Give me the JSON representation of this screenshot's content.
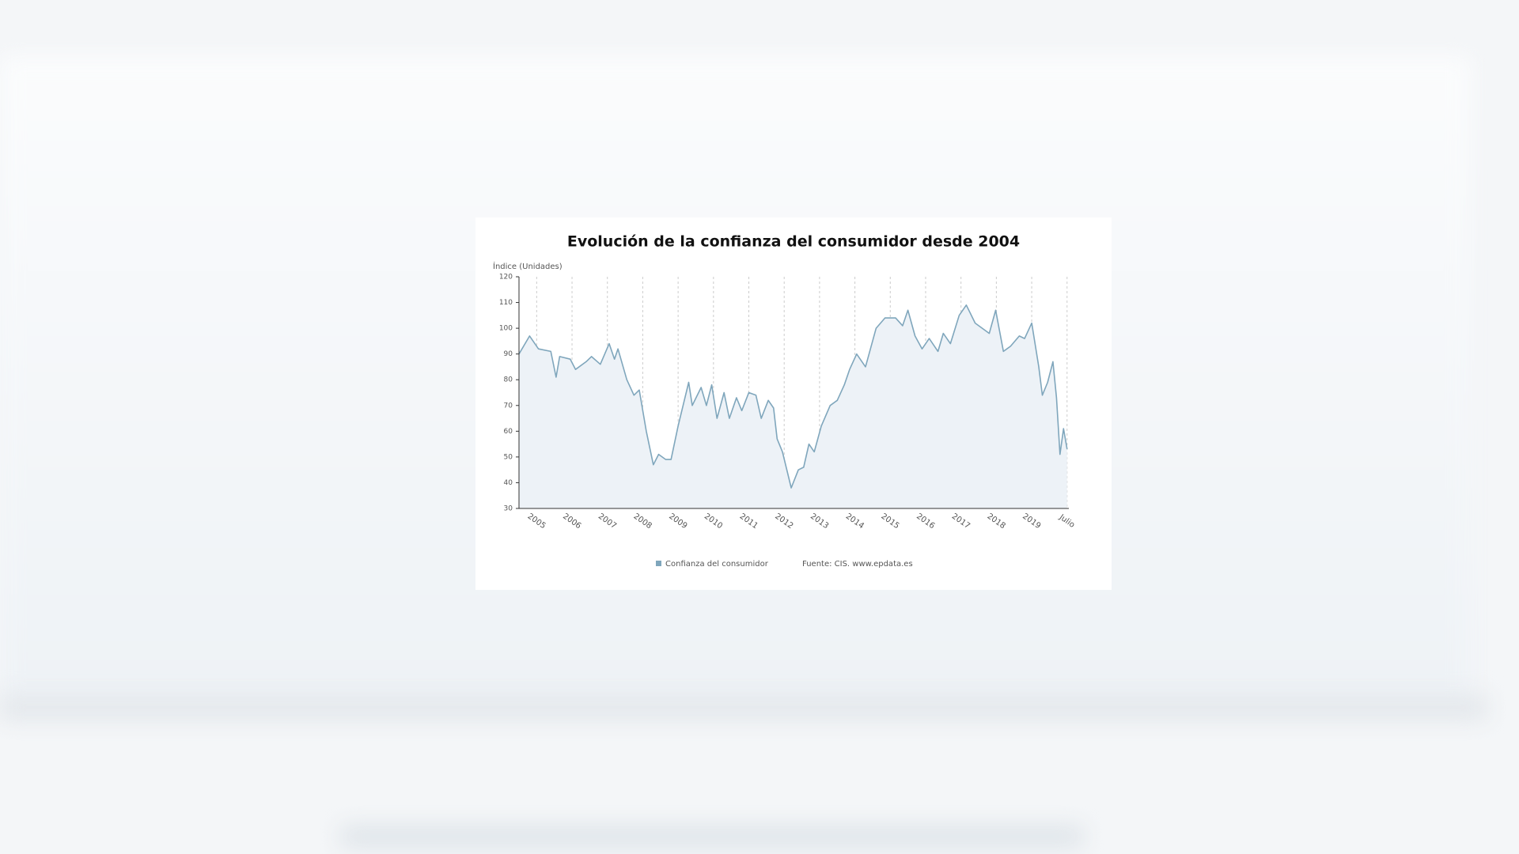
{
  "chart_data": {
    "type": "line",
    "title": "Evolución de la confianza del consumidor desde 2004",
    "y_label": "Índice (Unidades)",
    "source": "Fuente: CIS. www.epdata.es",
    "x": [
      2004.5,
      2004.8,
      2005.05,
      2005.4,
      2005.55,
      2005.65,
      2005.95,
      2006.1,
      2006.4,
      2006.55,
      2006.8,
      2007.05,
      2007.2,
      2007.3,
      2007.55,
      2007.75,
      2007.9,
      2008.1,
      2008.3,
      2008.45,
      2008.65,
      2008.8,
      2009.0,
      2009.3,
      2009.4,
      2009.65,
      2009.8,
      2009.95,
      2010.1,
      2010.3,
      2010.45,
      2010.65,
      2010.8,
      2011.0,
      2011.2,
      2011.35,
      2011.55,
      2011.7,
      2011.8,
      2011.95,
      2012.2,
      2012.4,
      2012.55,
      2012.7,
      2012.85,
      2013.05,
      2013.3,
      2013.5,
      2013.7,
      2013.85,
      2014.05,
      2014.3,
      2014.6,
      2014.85,
      2015.15,
      2015.35,
      2015.5,
      2015.7,
      2015.9,
      2016.1,
      2016.35,
      2016.5,
      2016.7,
      2016.95,
      2017.15,
      2017.4,
      2017.6,
      2017.8,
      2017.98,
      2018.2,
      2018.4,
      2018.65,
      2018.8,
      2019.0,
      2019.2,
      2019.3,
      2019.45,
      2019.6,
      2019.7,
      2019.8,
      2019.9,
      2020.0
    ],
    "series": [
      {
        "name": "Confianza del consumidor",
        "color": "#7fa6bc",
        "values": [
          90,
          97,
          92,
          91,
          81,
          89,
          88,
          84,
          87,
          89,
          86,
          94,
          88,
          92,
          80,
          74,
          76,
          60,
          47,
          51,
          49,
          49,
          62,
          79,
          70,
          77,
          70,
          78,
          65,
          75,
          65,
          73,
          68,
          75,
          74,
          65,
          72,
          69,
          57,
          52,
          38,
          45,
          46,
          55,
          52,
          62,
          70,
          72,
          78,
          84,
          90,
          85,
          100,
          104,
          104,
          101,
          107,
          97,
          92,
          96,
          91,
          98,
          94,
          105,
          109,
          102,
          100,
          98,
          107,
          91,
          93,
          97,
          96,
          102,
          85,
          74,
          79,
          87,
          73,
          51,
          61,
          53
        ]
      }
    ],
    "xlim": [
      2004.5,
      2020.05
    ],
    "xticks": [
      2005,
      2006,
      2007,
      2008,
      2009,
      2010,
      2011,
      2012,
      2013,
      2014,
      2015,
      2016,
      2017,
      2018,
      2019,
      {
        "value": 2020,
        "label": "Julio"
      }
    ],
    "ylim": [
      30,
      120
    ],
    "yticks": [
      30,
      40,
      50,
      60,
      70,
      80,
      90,
      100,
      110,
      120
    ],
    "grid": true
  }
}
